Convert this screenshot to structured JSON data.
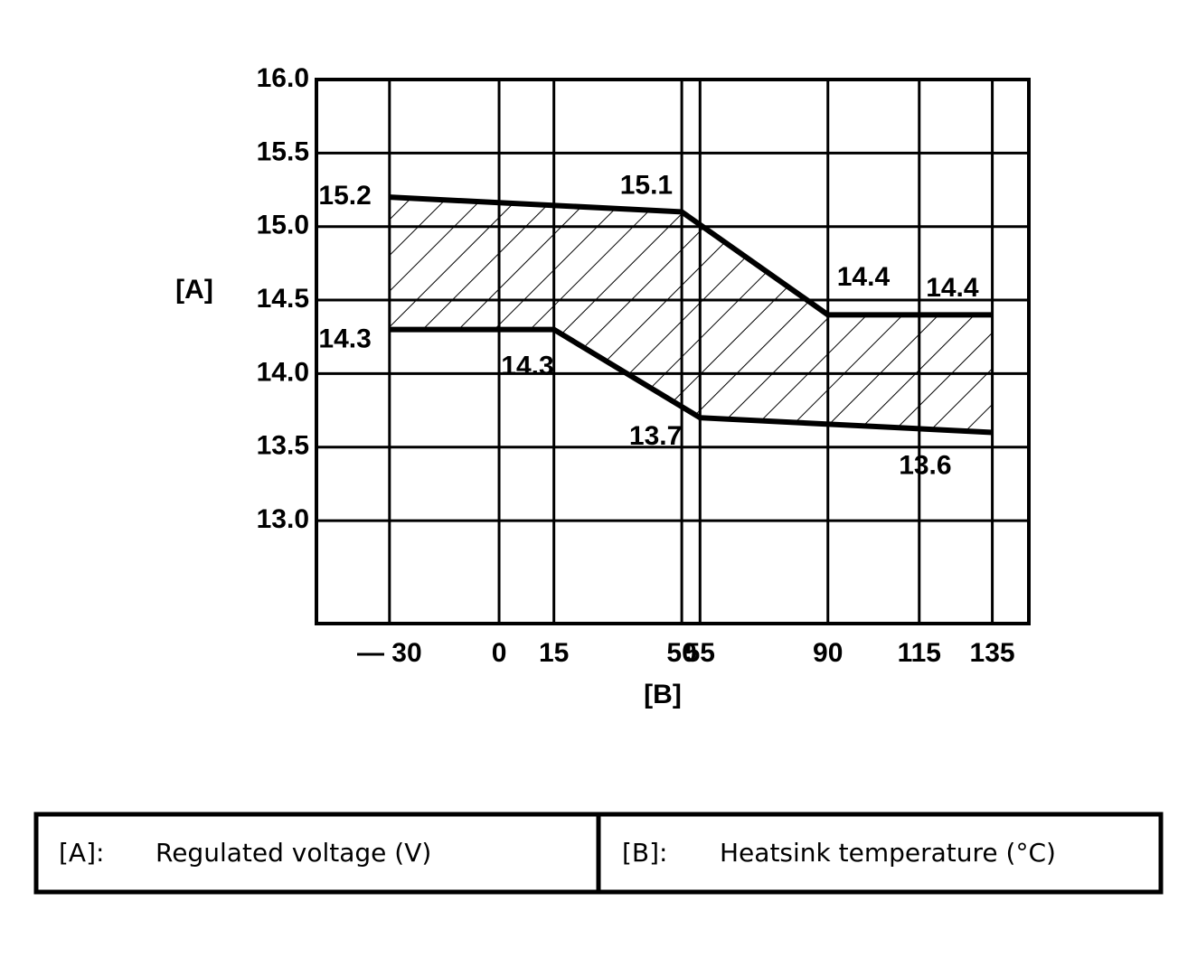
{
  "chart_data": {
    "type": "line",
    "y_label": "[A]",
    "x_label": "[B]",
    "xlim": [
      -50,
      145
    ],
    "ylim": [
      12.3,
      16.0
    ],
    "xticks": [
      {
        "value": -30,
        "label": "— 30"
      },
      0,
      15,
      50,
      55,
      90,
      115,
      135
    ],
    "yticks": [
      {
        "value": 13,
        "label": "13.0"
      },
      13.5,
      {
        "value": 14,
        "label": "14.0"
      },
      14.5,
      {
        "value": 15,
        "label": "15.0"
      },
      15.5,
      {
        "value": 16,
        "label": "16.0"
      }
    ],
    "grid": true,
    "hatch": true,
    "series": [
      {
        "color": "#000000",
        "x": [
          -30,
          50,
          90,
          135
        ],
        "values": [
          15.2,
          15.1,
          14.4,
          14.4
        ]
      },
      {
        "color": "#000000",
        "x": [
          -30,
          15,
          55,
          135
        ],
        "values": [
          14.3,
          14.3,
          13.7,
          13.6
        ]
      }
    ],
    "key": [
      {
        "symbol": "[A]:",
        "text": "Regulated voltage (V)"
      },
      {
        "symbol": "[B]:",
        "text": "Heatsink temperature (°C)"
      }
    ]
  }
}
